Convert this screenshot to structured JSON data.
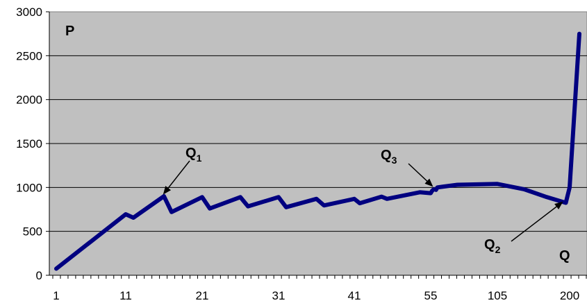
{
  "chart_data": {
    "type": "line",
    "title": "",
    "xlabel": "Q",
    "ylabel": "P",
    "ylim": [
      0,
      3000
    ],
    "y_ticks": [
      "0",
      "500",
      "1000",
      "1500",
      "2000",
      "2500",
      "3000"
    ],
    "x_tick_labels": [
      "1",
      "11",
      "21",
      "31",
      "41",
      "55",
      "105",
      "200"
    ],
    "grid": true,
    "legend": "none",
    "background_color": "#c0c0c0",
    "line_color": "#000080",
    "series": [
      {
        "values": [
          [
            1,
            75
          ],
          [
            11,
            695
          ],
          [
            12,
            655
          ],
          [
            16,
            900
          ],
          [
            17,
            720
          ],
          [
            21,
            890
          ],
          [
            22,
            760
          ],
          [
            26,
            890
          ],
          [
            27,
            785
          ],
          [
            31,
            890
          ],
          [
            32,
            775
          ],
          [
            36,
            870
          ],
          [
            37,
            795
          ],
          [
            41,
            870
          ],
          [
            42,
            820
          ],
          [
            46,
            895
          ],
          [
            47,
            870
          ],
          [
            53,
            945
          ],
          [
            55,
            935
          ],
          [
            56,
            960
          ],
          [
            57,
            975
          ],
          [
            58,
            980
          ],
          [
            59,
            972
          ],
          [
            60,
            1000
          ],
          [
            75,
            1030
          ],
          [
            105,
            1040
          ],
          [
            140,
            980
          ],
          [
            170,
            890
          ],
          [
            195,
            825
          ],
          [
            200,
            1000
          ],
          [
            205,
            2750
          ]
        ]
      }
    ],
    "annotations": [
      {
        "id": "q1",
        "label": "Q",
        "subscript": "1",
        "points_to": [
          16,
          900
        ]
      },
      {
        "id": "q3",
        "label": "Q",
        "subscript": "3",
        "points_to": [
          56,
          960
        ]
      },
      {
        "id": "q2",
        "label": "Q",
        "subscript": "2",
        "points_to": [
          195,
          825
        ]
      }
    ]
  }
}
